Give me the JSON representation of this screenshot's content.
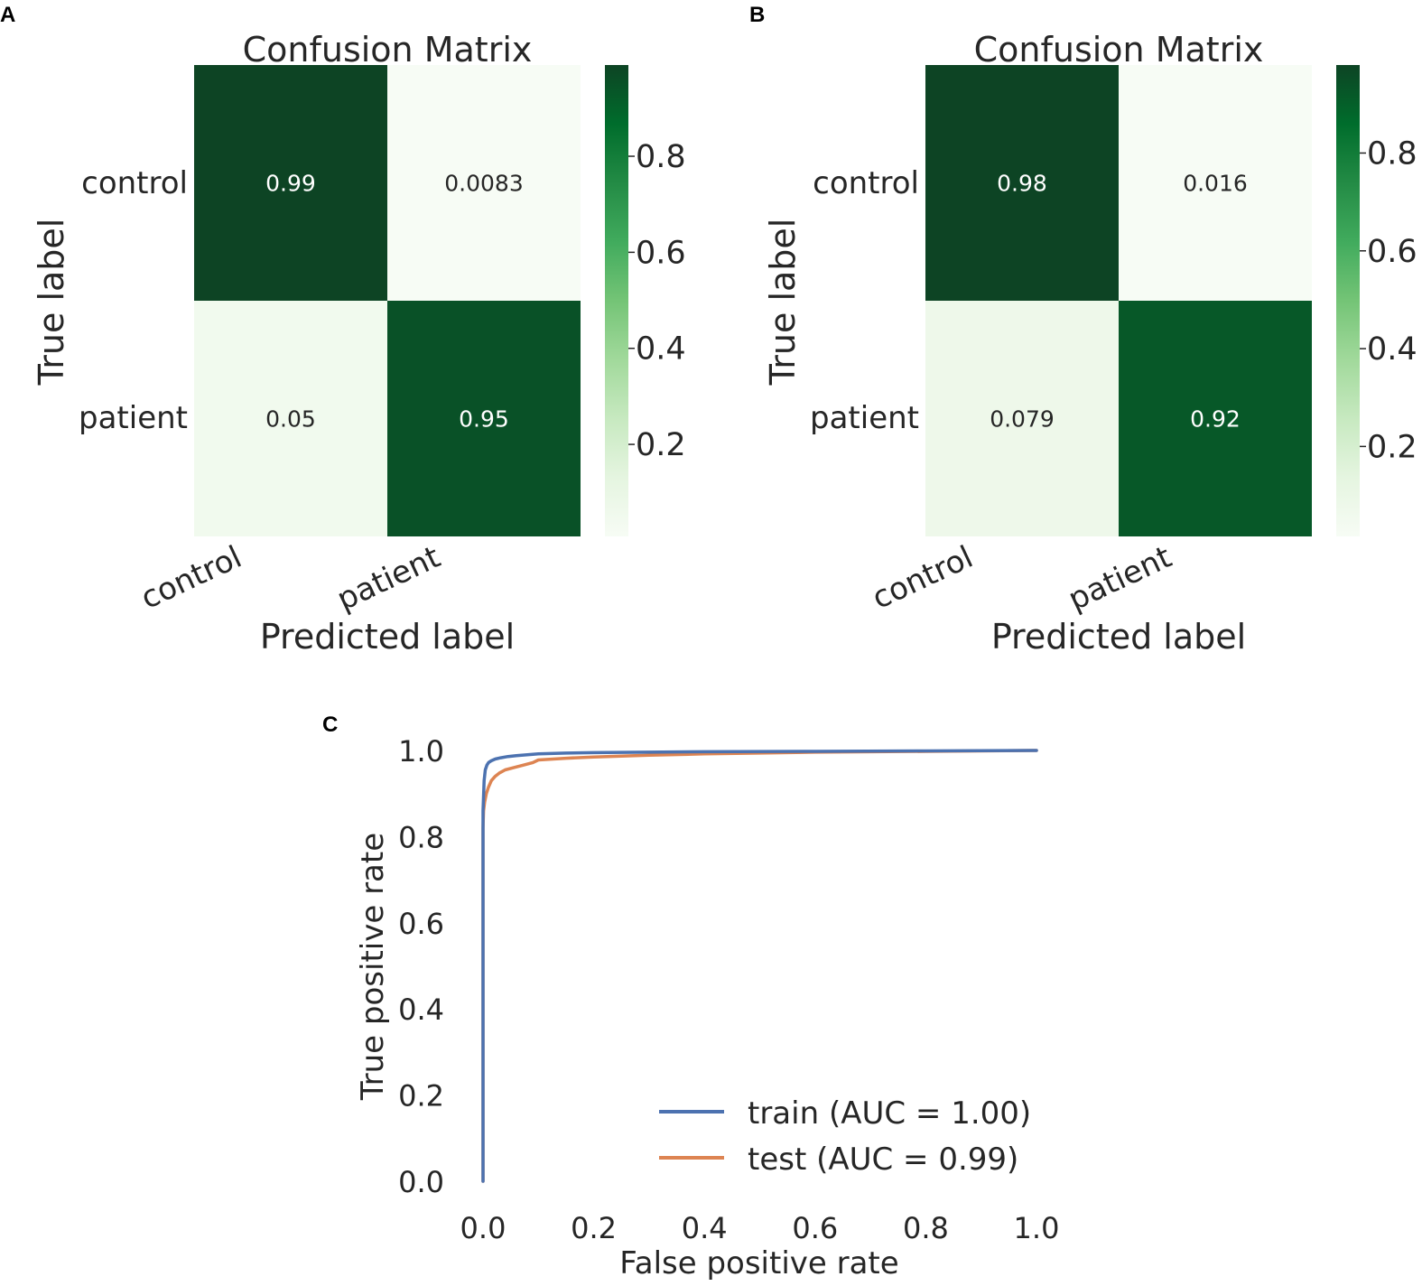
{
  "chart_data": [
    {
      "panel": "A",
      "type": "heatmap",
      "title": "Confusion Matrix",
      "xlabel": "Predicted label",
      "ylabel": "True label",
      "x_categories": [
        "control",
        "patient"
      ],
      "y_categories": [
        "control",
        "patient"
      ],
      "values": [
        [
          0.99,
          0.0083
        ],
        [
          0.05,
          0.95
        ]
      ],
      "cell_labels": [
        [
          "0.99",
          "0.0083"
        ],
        [
          "0.05",
          "0.95"
        ]
      ],
      "colorbar": {
        "colormap": "Greens",
        "range": [
          0.0083,
          0.99
        ],
        "ticks": [
          "0.2",
          "0.4",
          "0.6",
          "0.8"
        ]
      }
    },
    {
      "panel": "B",
      "type": "heatmap",
      "title": "Confusion Matrix",
      "xlabel": "Predicted label",
      "ylabel": "True label",
      "x_categories": [
        "control",
        "patient"
      ],
      "y_categories": [
        "control",
        "patient"
      ],
      "values": [
        [
          0.98,
          0.016
        ],
        [
          0.079,
          0.92
        ]
      ],
      "cell_labels": [
        [
          "0.98",
          "0.016"
        ],
        [
          "0.079",
          "0.92"
        ]
      ],
      "colorbar": {
        "colormap": "Greens",
        "range": [
          0.016,
          0.98
        ],
        "ticks": [
          "0.2",
          "0.4",
          "0.6",
          "0.8"
        ]
      }
    },
    {
      "panel": "C",
      "type": "line",
      "xlabel": "False positive rate",
      "ylabel": "True positive rate",
      "xlim": [
        0,
        1
      ],
      "ylim": [
        0,
        1
      ],
      "xticks": [
        "0.0",
        "0.2",
        "0.4",
        "0.6",
        "0.8",
        "1.0"
      ],
      "yticks": [
        "0.0",
        "0.2",
        "0.4",
        "0.6",
        "0.8",
        "1.0"
      ],
      "series": [
        {
          "name": "train (AUC = 1.00)",
          "color": "#4c72b0",
          "x": [
            0,
            0,
            0.002,
            0.004,
            0.007,
            0.01,
            0.015,
            0.022,
            0.032,
            0.045,
            0.06,
            0.08,
            0.1,
            0.15,
            0.2,
            0.3,
            0.4,
            0.6,
            0.8,
            1.0
          ],
          "y": [
            0,
            0.86,
            0.93,
            0.955,
            0.966,
            0.972,
            0.976,
            0.98,
            0.983,
            0.986,
            0.988,
            0.99,
            0.992,
            0.994,
            0.995,
            0.996,
            0.997,
            0.998,
            0.999,
            1.0
          ]
        },
        {
          "name": "test (AUC = 0.99)",
          "color": "#dd8452",
          "x": [
            0,
            0,
            0.001,
            0.003,
            0.006,
            0.01,
            0.015,
            0.022,
            0.03,
            0.04,
            0.055,
            0.07,
            0.09,
            0.1,
            0.15,
            0.2,
            0.3,
            0.4,
            0.5,
            0.6,
            0.8,
            1.0
          ],
          "y": [
            0,
            0.82,
            0.86,
            0.88,
            0.9,
            0.915,
            0.93,
            0.94,
            0.948,
            0.955,
            0.96,
            0.965,
            0.972,
            0.978,
            0.982,
            0.985,
            0.989,
            0.992,
            0.994,
            0.996,
            0.998,
            1.0
          ]
        }
      ],
      "legend": "lower-right"
    }
  ],
  "panel_letters": [
    "A",
    "B",
    "C"
  ]
}
